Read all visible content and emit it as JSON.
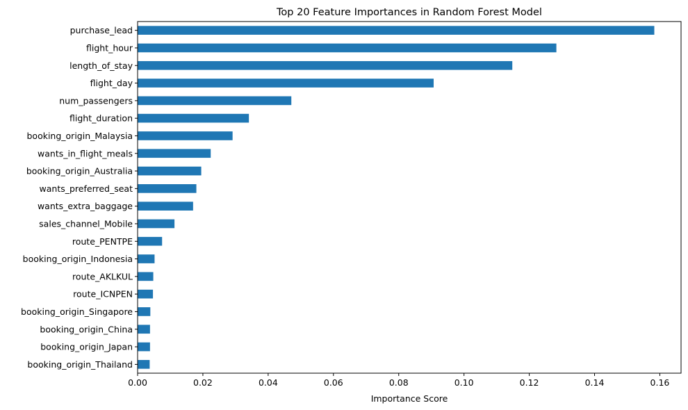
{
  "chart_data": {
    "type": "bar",
    "orientation": "horizontal",
    "title": "Top 20 Feature Importances in Random Forest Model",
    "xlabel": "Importance Score",
    "ylabel": "",
    "xlim": [
      0,
      0.1665
    ],
    "xticks": [
      0.0,
      0.02,
      0.04,
      0.06,
      0.08,
      0.1,
      0.12,
      0.14,
      0.16
    ],
    "xtick_labels": [
      "0.00",
      "0.02",
      "0.04",
      "0.06",
      "0.08",
      "0.10",
      "0.12",
      "0.14",
      "0.16"
    ],
    "grid": false,
    "bar_color": "#1f77b4",
    "categories": [
      "purchase_lead",
      "flight_hour",
      "length_of_stay",
      "flight_day",
      "num_passengers",
      "flight_duration",
      "booking_origin_Malaysia",
      "wants_in_flight_meals",
      "booking_origin_Australia",
      "wants_preferred_seat",
      "wants_extra_baggage",
      "sales_channel_Mobile",
      "route_PENTPE",
      "booking_origin_Indonesia",
      "route_AKLKUL",
      "route_ICNPEN",
      "booking_origin_Singapore",
      "booking_origin_China",
      "booking_origin_Japan",
      "booking_origin_Thailand"
    ],
    "values": [
      0.1583,
      0.1283,
      0.1148,
      0.0907,
      0.0471,
      0.0341,
      0.0291,
      0.0224,
      0.0195,
      0.018,
      0.017,
      0.0113,
      0.0075,
      0.0052,
      0.0048,
      0.0047,
      0.0039,
      0.0038,
      0.0038,
      0.0037
    ]
  }
}
